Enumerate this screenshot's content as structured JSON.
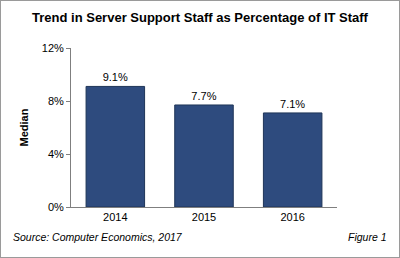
{
  "chart_data": {
    "type": "bar",
    "title": "Trend in Server Support Staff as Percentage of IT Staff",
    "y_label": "Median",
    "categories": [
      "2014",
      "2015",
      "2016"
    ],
    "values": [
      9.1,
      7.7,
      7.1
    ],
    "value_labels": [
      "9.1%",
      "7.7%",
      "7.1%"
    ],
    "data_labels": true,
    "color": "#2e4b7e",
    "ylim": [
      0,
      12
    ],
    "yticks": [
      {
        "value": 0,
        "label": "0%"
      },
      {
        "value": 4,
        "label": "4%"
      },
      {
        "value": 8,
        "label": "8%"
      },
      {
        "value": 12,
        "label": "12%"
      }
    ],
    "grid": false,
    "annotations": [
      "Source: Computer Economics, 2017",
      "Figure 1"
    ]
  }
}
